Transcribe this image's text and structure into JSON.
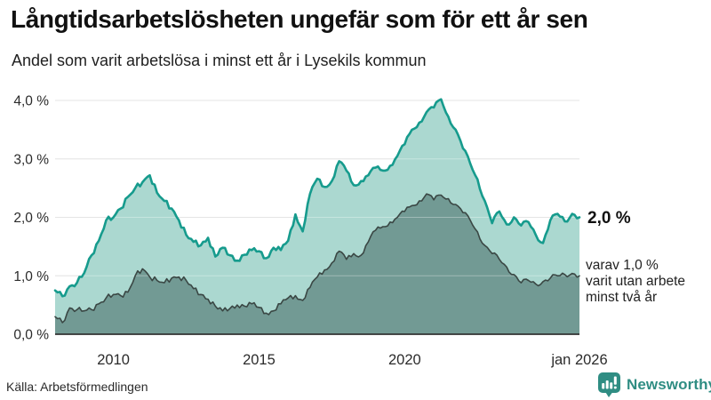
{
  "header": {
    "title": "Långtidsarbetslösheten ungefär som för ett år sen",
    "subtitle": "Andel som varit arbetslösa i minst ett år i Lysekils kommun"
  },
  "chart_data": {
    "type": "area",
    "title": "Långtidsarbetslösheten ungefär som för ett år sen",
    "subtitle": "Andel som varit arbetslösa i minst ett år i Lysekils kommun",
    "unit": "%",
    "x_start": 2008,
    "x_step": 0.25,
    "x_end": 2026,
    "ylim": [
      0,
      4.3
    ],
    "grid": true,
    "yticks": [
      {
        "label": "0,0 %",
        "value": 0
      },
      {
        "label": "1,0 %",
        "value": 1
      },
      {
        "label": "2,0 %",
        "value": 2
      },
      {
        "label": "3,0 %",
        "value": 3
      },
      {
        "label": "4,0 %",
        "value": 4
      }
    ],
    "xticks": [
      {
        "label": "2010",
        "x": 2010
      },
      {
        "label": "2015",
        "x": 2015
      },
      {
        "label": "2020",
        "x": 2020
      },
      {
        "label": "jan 2026",
        "x": 2026
      }
    ],
    "series": [
      {
        "name": "arbetslösa minst ett år",
        "line_color": "#169b8d",
        "fill_color": "#abd8d0",
        "end_value": 2.0,
        "values": [
          0.75,
          0.65,
          0.82,
          0.88,
          1.05,
          1.35,
          1.6,
          1.95,
          2.0,
          2.15,
          2.35,
          2.5,
          2.6,
          2.72,
          2.42,
          2.28,
          2.15,
          1.95,
          1.7,
          1.58,
          1.52,
          1.65,
          1.33,
          1.48,
          1.35,
          1.26,
          1.36,
          1.44,
          1.42,
          1.3,
          1.48,
          1.44,
          1.6,
          2.05,
          1.76,
          2.4,
          2.66,
          2.52,
          2.62,
          2.96,
          2.8,
          2.55,
          2.62,
          2.72,
          2.85,
          2.8,
          2.88,
          3.05,
          3.25,
          3.5,
          3.62,
          3.8,
          3.88,
          4.02,
          3.72,
          3.5,
          3.18,
          2.92,
          2.65,
          2.28,
          1.9,
          2.1,
          1.88,
          2.0,
          1.86,
          1.92,
          1.7,
          1.56,
          1.95,
          2.06,
          1.93,
          2.06,
          2.0
        ]
      },
      {
        "name": "varav utan arbete minst två år",
        "line_color": "#3a4744",
        "fill_color": "#729a94",
        "end_value": 1.0,
        "values": [
          0.3,
          0.2,
          0.45,
          0.42,
          0.4,
          0.42,
          0.52,
          0.62,
          0.68,
          0.66,
          0.72,
          1.0,
          1.12,
          0.98,
          0.92,
          0.88,
          0.96,
          0.98,
          0.92,
          0.78,
          0.68,
          0.6,
          0.48,
          0.4,
          0.44,
          0.5,
          0.48,
          0.52,
          0.46,
          0.36,
          0.4,
          0.52,
          0.62,
          0.66,
          0.58,
          0.8,
          0.98,
          1.1,
          1.22,
          1.42,
          1.28,
          1.38,
          1.35,
          1.58,
          1.78,
          1.84,
          1.92,
          2.0,
          2.1,
          2.2,
          2.28,
          2.4,
          2.3,
          2.38,
          2.32,
          2.22,
          2.08,
          1.95,
          1.75,
          1.52,
          1.38,
          1.28,
          1.15,
          1.02,
          0.88,
          0.92,
          0.86,
          0.9,
          0.96,
          1.0,
          1.02,
          1.04,
          1.0
        ]
      }
    ],
    "annotations": {
      "total_end_label": "2,0 %",
      "secondary_lines": [
        "varav 1,0 %",
        "varit utan arbete",
        "minst två år"
      ]
    },
    "legend_position": "right-annotations"
  },
  "footer": {
    "source": "Källa: Arbetsförmedlingen",
    "brand": "Newsworthy"
  },
  "colors": {
    "accent_teal": "#169b8d",
    "light_fill": "#abd8d0",
    "dark_fill": "#729a94",
    "dark_line": "#3a4744",
    "gridline": "#d9d9d9",
    "axis": "#333333",
    "brand_teal": "#2f8d83"
  }
}
